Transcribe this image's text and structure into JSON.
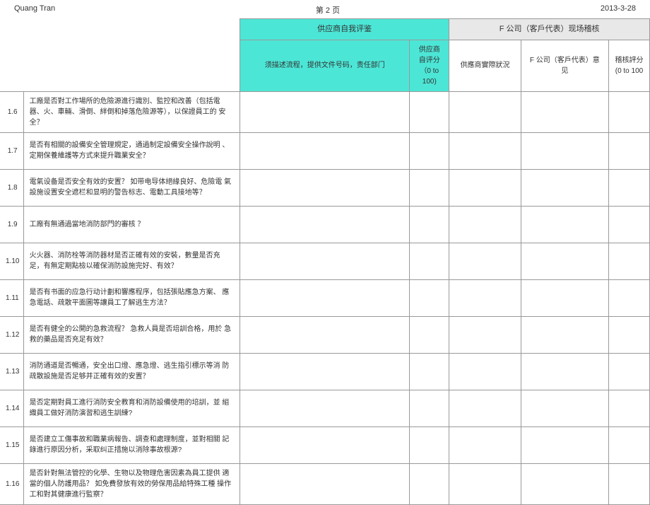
{
  "header": {
    "author": "Quang Tran",
    "page": "第 2 页",
    "date": "2013-3-28"
  },
  "columns": {
    "group1": "供应商自我评鉴",
    "group2": "F 公司（客戶代表）现场稽核",
    "c1": "须描述流程，提供文件号码，责任部门",
    "c2": "供应商自评分（0 to 100)",
    "c3": "供應商實際狀況",
    "c4": "F 公司（客戶代表）意见",
    "c5": "稽核評分 (0 to 100"
  },
  "rows": [
    {
      "num": "1.6",
      "q": "工廠是否對工作場所的危險源進行識別、監控和改善（包括電  器、火、車輛、滑倒、絆倒和掉落危險源等），以保證員工的  安全？"
    },
    {
      "num": "1.7",
      "q": "是否有相關的設備安全管理規定，通過制定設備安全操作說明 、定期保養維護等方式來提升職業安全？"
    },
    {
      "num": "1.8",
      "q": "電氣设备是否安全有效的安置？  如带电导体絕緣良好、危險電  氣設施设置安全遮栏和显明的警告标志、電動工具接地等？"
    },
    {
      "num": "1.9",
      "q": "工廠有無通過當地消防部門的審核   ？"
    },
    {
      "num": "1.10",
      "q": "火火器、消防栓等消防器材是否正確有效的安裝，數量是否充  足，有無定期點檢以確保消防設施完好、有效？"
    },
    {
      "num": "1.11",
      "q": "是否有书面的应急行动计劃和響應程序，包括張貼應急方案、   應急電話、疏散平面圖等讓員工了解逃生方法？"
    },
    {
      "num": "1.12",
      "q": "是否有健全的公開的急救流程？  急救人員是否培訓合格，用於  急救的藥品是否充足有效？"
    },
    {
      "num": "1.13",
      "q": "消防通道是否暢通，安全出口燈、應急燈、逃生指引標示等消   防疏散設施是否足够并正確有效的安置？"
    },
    {
      "num": "1.14",
      "q": "是否定期對員工進行消防安全教育和消防設備使用的培訓，並   組織員工做好消防演習和逃生訓練?"
    },
    {
      "num": "1.15",
      "q": "是否建立工傷事故和職業病報告、調查和處理制度，並對相關  記錄進行原因分析，采取纠正措施以消除事故根源?"
    },
    {
      "num": "1.16",
      "q": "是否針對無法管控的化學、生物以及物理危害因素為員工提供  適當的個人防護用品？  如免費發放有效的勞保用品給特殊工種  操作工和對其健康進行監察？"
    }
  ]
}
